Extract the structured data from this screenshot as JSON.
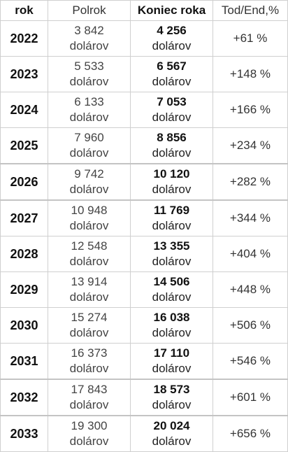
{
  "headers": {
    "year": "rok",
    "half": "Polrok",
    "end": "Koniec roka",
    "pct": "Tod/End,%"
  },
  "unit": "dolárov",
  "rows": [
    {
      "year": "2022",
      "half": "3 842",
      "end": "4 256",
      "pct": "+61 %"
    },
    {
      "year": "2023",
      "half": "5 533",
      "end": "6 567",
      "pct": "+148 %"
    },
    {
      "year": "2024",
      "half": "6 133",
      "end": "7 053",
      "pct": "+166 %"
    },
    {
      "year": "2025",
      "half": "7 960",
      "end": "8 856",
      "pct": "+234 %"
    },
    {
      "year": "2026",
      "half": "9 742",
      "end": "10 120",
      "pct": "+282 %"
    },
    {
      "year": "2027",
      "half": "10 948",
      "end": "11 769",
      "pct": "+344 %"
    },
    {
      "year": "2028",
      "half": "12 548",
      "end": "13 355",
      "pct": "+404 %"
    },
    {
      "year": "2029",
      "half": "13 914",
      "end": "14 506",
      "pct": "+448 %"
    },
    {
      "year": "2030",
      "half": "15 274",
      "end": "16 038",
      "pct": "+506 %"
    },
    {
      "year": "2031",
      "half": "16 373",
      "end": "17 110",
      "pct": "+546 %"
    },
    {
      "year": "2032",
      "half": "17 843",
      "end": "18 573",
      "pct": "+601 %"
    },
    {
      "year": "2033",
      "half": "19 300",
      "end": "20 024",
      "pct": "+656 %"
    }
  ]
}
